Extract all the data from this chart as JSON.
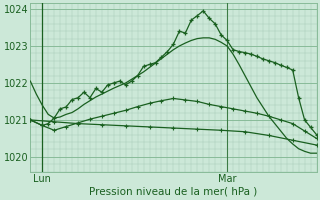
{
  "bg_color": "#cce8d8",
  "grid_major_color": "#88bb99",
  "grid_minor_color": "#aaccbb",
  "line_color": "#1a6020",
  "title": "Pression niveau de la mer( hPa )",
  "ylim": [
    1019.6,
    1024.15
  ],
  "yticks": [
    1020,
    1021,
    1022,
    1023,
    1024
  ],
  "xlim": [
    0,
    48
  ],
  "lun_x": 2,
  "mar_x": 33,
  "lun_label": "Lun",
  "mar_label": "Mar",
  "line1_x": [
    0,
    1,
    2,
    3,
    4,
    5,
    6,
    7,
    8,
    9,
    10,
    11,
    12,
    13,
    14,
    15,
    16,
    17,
    18,
    19,
    20,
    21,
    22,
    23,
    24,
    25,
    26,
    27,
    28,
    29,
    30,
    31,
    32,
    33,
    34,
    35,
    36,
    37,
    38,
    39,
    40,
    41,
    42,
    43,
    44,
    45,
    46,
    47,
    48
  ],
  "line1_y": [
    1022.05,
    1021.7,
    1021.4,
    1021.15,
    1021.05,
    1021.08,
    1021.15,
    1021.2,
    1021.3,
    1021.42,
    1021.52,
    1021.62,
    1021.7,
    1021.78,
    1021.86,
    1021.93,
    1022.0,
    1022.1,
    1022.2,
    1022.3,
    1022.42,
    1022.54,
    1022.66,
    1022.78,
    1022.9,
    1023.0,
    1023.08,
    1023.15,
    1023.2,
    1023.22,
    1023.22,
    1023.18,
    1023.1,
    1023.0,
    1022.78,
    1022.5,
    1022.2,
    1021.9,
    1021.6,
    1021.35,
    1021.1,
    1020.9,
    1020.7,
    1020.5,
    1020.35,
    1020.22,
    1020.15,
    1020.1,
    1020.1
  ],
  "line2_x": [
    0,
    2,
    3,
    4,
    5,
    6,
    7,
    8,
    9,
    10,
    11,
    12,
    13,
    14,
    15,
    16,
    17,
    18,
    19,
    20,
    21,
    22,
    23,
    24,
    25,
    26,
    27,
    28,
    29,
    30,
    31,
    32,
    33,
    34,
    35,
    36,
    37,
    38,
    39,
    40,
    41,
    42,
    43,
    44,
    45,
    46,
    47,
    48
  ],
  "line2_y": [
    1021.0,
    1020.85,
    1020.9,
    1021.05,
    1021.3,
    1021.35,
    1021.55,
    1021.6,
    1021.75,
    1021.6,
    1021.85,
    1021.75,
    1021.95,
    1022.0,
    1022.05,
    1021.95,
    1022.05,
    1022.2,
    1022.45,
    1022.5,
    1022.55,
    1022.7,
    1022.85,
    1023.05,
    1023.4,
    1023.35,
    1023.7,
    1023.82,
    1023.95,
    1023.75,
    1023.6,
    1023.3,
    1023.15,
    1022.9,
    1022.85,
    1022.82,
    1022.78,
    1022.72,
    1022.65,
    1022.6,
    1022.55,
    1022.48,
    1022.42,
    1022.35,
    1021.6,
    1021.0,
    1020.8,
    1020.6
  ],
  "line3_x": [
    0,
    2,
    4,
    6,
    8,
    10,
    12,
    14,
    16,
    18,
    20,
    22,
    24,
    26,
    28,
    30,
    32,
    34,
    36,
    38,
    40,
    42,
    44,
    46,
    48
  ],
  "line3_y": [
    1021.0,
    1020.85,
    1020.72,
    1020.82,
    1020.92,
    1021.02,
    1021.1,
    1021.18,
    1021.26,
    1021.36,
    1021.45,
    1021.52,
    1021.58,
    1021.54,
    1021.5,
    1021.42,
    1021.36,
    1021.3,
    1021.24,
    1021.18,
    1021.1,
    1021.0,
    1020.9,
    1020.7,
    1020.5
  ],
  "line4_x": [
    0,
    4,
    8,
    12,
    16,
    20,
    24,
    28,
    32,
    36,
    40,
    44,
    48
  ],
  "line4_y": [
    1021.0,
    1020.95,
    1020.9,
    1020.87,
    1020.84,
    1020.81,
    1020.78,
    1020.75,
    1020.72,
    1020.68,
    1020.58,
    1020.45,
    1020.32
  ]
}
